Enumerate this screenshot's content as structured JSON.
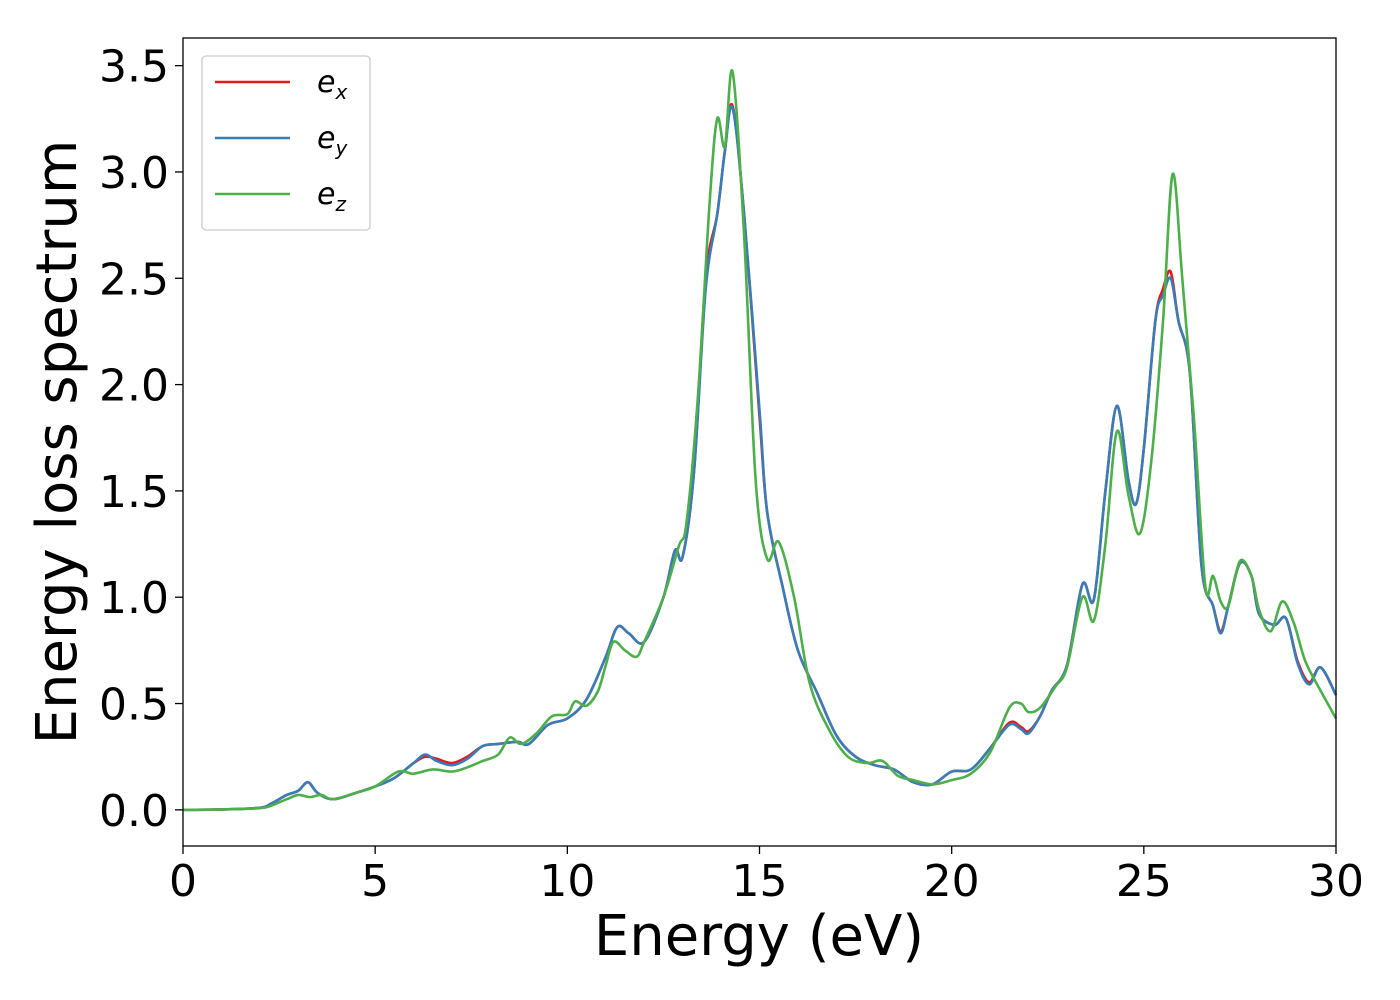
{
  "chart_data": {
    "type": "line",
    "xlabel": "Energy (eV)",
    "ylabel": "Energy loss spectrum",
    "xlim": [
      0,
      30
    ],
    "ylim": [
      -0.17,
      3.63
    ],
    "xticks": [
      0,
      5,
      10,
      15,
      20,
      25,
      30
    ],
    "xtick_labels": [
      "0",
      "5",
      "10",
      "15",
      "20",
      "25",
      "30"
    ],
    "yticks": [
      0.0,
      0.5,
      1.0,
      1.5,
      2.0,
      2.5,
      3.0,
      3.5
    ],
    "ytick_labels": [
      "0.0",
      "0.5",
      "1.0",
      "1.5",
      "2.0",
      "2.5",
      "3.0",
      "3.5"
    ],
    "grid": false,
    "legend_position": "top-left",
    "series": [
      {
        "name": "e_x",
        "legend_base": "e",
        "legend_sub": "x",
        "color": "#e41a1c",
        "x": [
          0,
          1,
          2,
          2.3,
          2.7,
          3.0,
          3.25,
          3.5,
          3.9,
          4.5,
          5.0,
          5.5,
          6.0,
          6.3,
          6.6,
          7.0,
          7.4,
          7.8,
          8.2,
          8.7,
          9.0,
          9.5,
          10.0,
          10.5,
          11.0,
          11.3,
          11.6,
          12.0,
          12.5,
          12.8,
          13.0,
          13.3,
          13.6,
          13.9,
          14.1,
          14.3,
          14.6,
          15.0,
          15.2,
          15.6,
          16.0,
          16.5,
          17.0,
          17.5,
          18.0,
          18.5,
          19.0,
          19.5,
          20.0,
          20.5,
          21.0,
          21.5,
          21.8,
          22.0,
          22.3,
          22.6,
          23.0,
          23.4,
          23.7,
          24.0,
          24.3,
          24.6,
          24.8,
          25.0,
          25.3,
          25.5,
          25.7,
          25.9,
          26.2,
          26.5,
          26.8,
          27.0,
          27.2,
          27.5,
          27.8,
          28.0,
          28.4,
          28.7,
          29.0,
          29.3,
          29.6,
          30.0
        ],
        "y": [
          0,
          0.002,
          0.01,
          0.03,
          0.07,
          0.09,
          0.13,
          0.08,
          0.05,
          0.08,
          0.11,
          0.15,
          0.22,
          0.25,
          0.24,
          0.22,
          0.25,
          0.3,
          0.31,
          0.32,
          0.31,
          0.4,
          0.43,
          0.52,
          0.72,
          0.86,
          0.83,
          0.79,
          1.0,
          1.22,
          1.19,
          1.6,
          2.5,
          2.8,
          3.1,
          3.31,
          2.8,
          1.85,
          1.4,
          1.05,
          0.75,
          0.55,
          0.35,
          0.25,
          0.21,
          0.19,
          0.13,
          0.12,
          0.18,
          0.19,
          0.29,
          0.41,
          0.39,
          0.37,
          0.44,
          0.56,
          0.68,
          1.06,
          0.99,
          1.5,
          1.9,
          1.55,
          1.44,
          1.7,
          2.3,
          2.45,
          2.53,
          2.3,
          2.05,
          1.15,
          0.96,
          0.84,
          0.96,
          1.16,
          1.1,
          0.92,
          0.87,
          0.9,
          0.7,
          0.6,
          0.67,
          0.54
        ]
      },
      {
        "name": "e_y",
        "legend_base": "e",
        "legend_sub": "y",
        "color": "#377eb8",
        "x": [
          0,
          1,
          2,
          2.3,
          2.7,
          3.0,
          3.25,
          3.5,
          3.9,
          4.5,
          5.0,
          5.5,
          6.0,
          6.3,
          6.6,
          7.0,
          7.4,
          7.8,
          8.2,
          8.7,
          9.0,
          9.5,
          10.0,
          10.5,
          11.0,
          11.3,
          11.6,
          12.0,
          12.5,
          12.8,
          13.0,
          13.3,
          13.6,
          13.9,
          14.1,
          14.3,
          14.6,
          15.0,
          15.2,
          15.6,
          16.0,
          16.5,
          17.0,
          17.5,
          18.0,
          18.5,
          19.0,
          19.5,
          20.0,
          20.5,
          21.0,
          21.5,
          21.8,
          22.0,
          22.3,
          22.6,
          23.0,
          23.4,
          23.7,
          24.0,
          24.3,
          24.6,
          24.8,
          25.0,
          25.3,
          25.5,
          25.7,
          25.9,
          26.2,
          26.5,
          26.8,
          27.0,
          27.2,
          27.5,
          27.8,
          28.0,
          28.4,
          28.7,
          29.0,
          29.3,
          29.6,
          30.0
        ],
        "y": [
          0,
          0.002,
          0.01,
          0.03,
          0.07,
          0.09,
          0.13,
          0.08,
          0.05,
          0.08,
          0.11,
          0.15,
          0.22,
          0.26,
          0.23,
          0.21,
          0.24,
          0.3,
          0.31,
          0.32,
          0.31,
          0.4,
          0.43,
          0.52,
          0.72,
          0.86,
          0.83,
          0.79,
          1.0,
          1.22,
          1.19,
          1.6,
          2.45,
          2.8,
          3.1,
          3.3,
          2.8,
          1.88,
          1.4,
          1.05,
          0.75,
          0.55,
          0.35,
          0.25,
          0.21,
          0.19,
          0.13,
          0.12,
          0.18,
          0.19,
          0.29,
          0.4,
          0.38,
          0.36,
          0.44,
          0.56,
          0.68,
          1.06,
          0.99,
          1.5,
          1.9,
          1.55,
          1.44,
          1.7,
          2.3,
          2.42,
          2.5,
          2.3,
          2.05,
          1.15,
          0.96,
          0.83,
          0.96,
          1.16,
          1.1,
          0.92,
          0.87,
          0.9,
          0.69,
          0.59,
          0.67,
          0.54
        ]
      },
      {
        "name": "e_z",
        "legend_base": "e",
        "legend_sub": "z",
        "color": "#4daf4a",
        "x": [
          0,
          1,
          2,
          2.3,
          2.7,
          3.0,
          3.3,
          3.6,
          3.9,
          4.5,
          5.0,
          5.6,
          6.0,
          6.5,
          7.0,
          7.4,
          7.8,
          8.2,
          8.5,
          8.8,
          9.2,
          9.6,
          10.0,
          10.2,
          10.5,
          10.8,
          11.0,
          11.2,
          11.5,
          11.8,
          12.0,
          12.5,
          12.9,
          13.1,
          13.4,
          13.7,
          13.9,
          14.1,
          14.3,
          14.6,
          14.9,
          15.2,
          15.5,
          15.9,
          16.3,
          16.8,
          17.3,
          17.8,
          18.2,
          18.6,
          19.0,
          19.5,
          20.0,
          20.5,
          21.0,
          21.5,
          21.8,
          22.0,
          22.3,
          22.7,
          23.0,
          23.4,
          23.7,
          24.0,
          24.3,
          24.6,
          24.9,
          25.2,
          25.5,
          25.75,
          26.0,
          26.3,
          26.6,
          26.8,
          27.0,
          27.2,
          27.5,
          27.8,
          28.0,
          28.3,
          28.6,
          28.9,
          29.2,
          29.6,
          30.0
        ],
        "y": [
          0,
          0.002,
          0.008,
          0.02,
          0.05,
          0.07,
          0.06,
          0.07,
          0.05,
          0.08,
          0.11,
          0.18,
          0.17,
          0.19,
          0.18,
          0.2,
          0.23,
          0.26,
          0.34,
          0.31,
          0.36,
          0.44,
          0.45,
          0.51,
          0.49,
          0.56,
          0.68,
          0.79,
          0.75,
          0.72,
          0.79,
          1.0,
          1.24,
          1.35,
          1.95,
          2.85,
          3.25,
          3.12,
          3.47,
          2.7,
          1.55,
          1.18,
          1.26,
          1.0,
          0.6,
          0.38,
          0.25,
          0.22,
          0.23,
          0.16,
          0.14,
          0.12,
          0.14,
          0.17,
          0.27,
          0.48,
          0.5,
          0.46,
          0.48,
          0.58,
          0.67,
          1.0,
          0.89,
          1.25,
          1.78,
          1.48,
          1.3,
          1.65,
          2.3,
          2.99,
          2.5,
          1.85,
          1.05,
          1.1,
          0.98,
          0.96,
          1.17,
          1.1,
          0.94,
          0.84,
          0.98,
          0.88,
          0.7,
          0.56,
          0.43
        ]
      }
    ]
  }
}
